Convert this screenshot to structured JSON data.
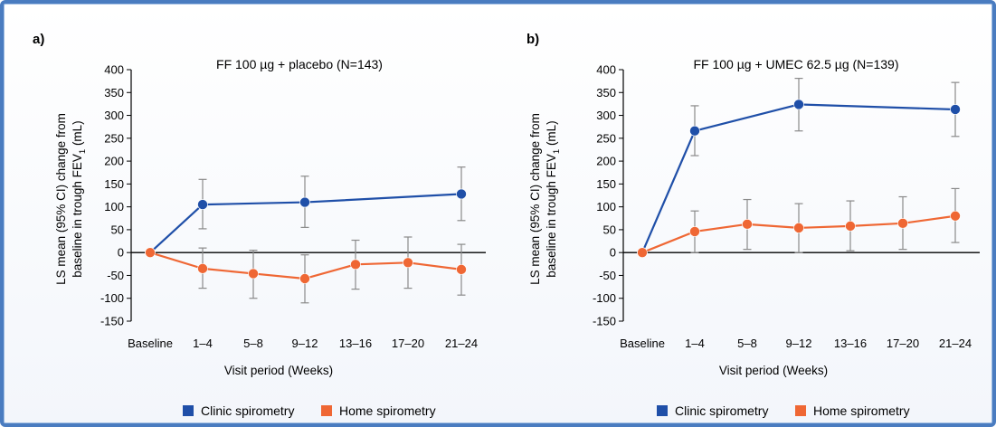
{
  "colors": {
    "clinic": "#1f4fa8",
    "home": "#ef6734",
    "errorbar": "#8a8a8a",
    "frame": "#4a7cc0"
  },
  "chart_data": [
    {
      "type": "line",
      "panel": "a)",
      "title": "FF 100 µg + placebo (N=143)",
      "xlabel": "Visit period (Weeks)",
      "ylabel_line1": "LS mean (95% CI) change from",
      "ylabel_line2": "baseline in trough FEV",
      "ylabel_sub": "1",
      "ylabel_unit": " (mL)",
      "ylim": [
        -150,
        400
      ],
      "yticks": [
        -150,
        -100,
        -50,
        0,
        50,
        100,
        150,
        200,
        250,
        300,
        350,
        400
      ],
      "categories": [
        "Baseline",
        "1–4",
        "5–8",
        "9–12",
        "13–16",
        "17–20",
        "21–24"
      ],
      "series": [
        {
          "name": "Clinic spirometry",
          "color_key": "clinic",
          "points": [
            {
              "cat": 0,
              "y": 0,
              "lo": null,
              "hi": null
            },
            {
              "cat": 1,
              "y": 105,
              "lo": 52,
              "hi": 160
            },
            {
              "cat": 3,
              "y": 110,
              "lo": 55,
              "hi": 167
            },
            {
              "cat": 6,
              "y": 128,
              "lo": 70,
              "hi": 187
            }
          ]
        },
        {
          "name": "Home spirometry",
          "color_key": "home",
          "points": [
            {
              "cat": 0,
              "y": 0,
              "lo": null,
              "hi": null
            },
            {
              "cat": 1,
              "y": -35,
              "lo": -78,
              "hi": 10
            },
            {
              "cat": 2,
              "y": -46,
              "lo": -100,
              "hi": 5
            },
            {
              "cat": 3,
              "y": -57,
              "lo": -110,
              "hi": -5
            },
            {
              "cat": 4,
              "y": -26,
              "lo": -80,
              "hi": 27
            },
            {
              "cat": 5,
              "y": -22,
              "lo": -78,
              "hi": 34
            },
            {
              "cat": 6,
              "y": -37,
              "lo": -93,
              "hi": 18
            }
          ]
        }
      ],
      "legend": [
        {
          "label": "Clinic spirometry",
          "color_key": "clinic"
        },
        {
          "label": "Home spirometry",
          "color_key": "home"
        }
      ]
    },
    {
      "type": "line",
      "panel": "b)",
      "title": "FF 100 µg + UMEC 62.5 µg (N=139)",
      "xlabel": "Visit period (Weeks)",
      "ylabel_line1": "LS mean (95% CI) change from",
      "ylabel_line2": "baseline in trough FEV",
      "ylabel_sub": "1",
      "ylabel_unit": " (mL)",
      "ylim": [
        -150,
        400
      ],
      "yticks": [
        -150,
        -100,
        -50,
        0,
        50,
        100,
        150,
        200,
        250,
        300,
        350,
        400
      ],
      "categories": [
        "Baseline",
        "1–4",
        "5–8",
        "9–12",
        "13–16",
        "17–20",
        "21–24"
      ],
      "series": [
        {
          "name": "Clinic spirometry",
          "color_key": "clinic",
          "points": [
            {
              "cat": 0,
              "y": 0,
              "lo": null,
              "hi": null
            },
            {
              "cat": 1,
              "y": 266,
              "lo": 212,
              "hi": 321
            },
            {
              "cat": 3,
              "y": 324,
              "lo": 266,
              "hi": 381
            },
            {
              "cat": 6,
              "y": 313,
              "lo": 254,
              "hi": 372
            }
          ]
        },
        {
          "name": "Home spirometry",
          "color_key": "home",
          "points": [
            {
              "cat": 0,
              "y": 0,
              "lo": null,
              "hi": null
            },
            {
              "cat": 1,
              "y": 46,
              "lo": 0,
              "hi": 91
            },
            {
              "cat": 2,
              "y": 62,
              "lo": 7,
              "hi": 116
            },
            {
              "cat": 3,
              "y": 54,
              "lo": 0,
              "hi": 107
            },
            {
              "cat": 4,
              "y": 58,
              "lo": 4,
              "hi": 113
            },
            {
              "cat": 5,
              "y": 64,
              "lo": 7,
              "hi": 122
            },
            {
              "cat": 6,
              "y": 80,
              "lo": 22,
              "hi": 140
            }
          ]
        }
      ],
      "legend": [
        {
          "label": "Clinic spirometry",
          "color_key": "clinic"
        },
        {
          "label": "Home spirometry",
          "color_key": "home"
        }
      ]
    }
  ]
}
